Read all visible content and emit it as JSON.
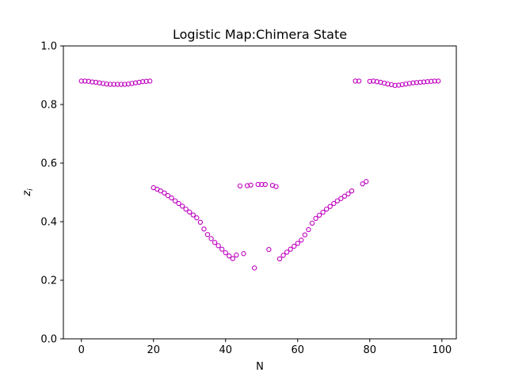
{
  "chart_data": {
    "type": "scatter",
    "title": "Logistic Map:Chimera State",
    "xlabel": "N",
    "ylabel_base": "z",
    "ylabel_sub": "i",
    "xlim": [
      -5,
      104
    ],
    "ylim": [
      0.0,
      1.0
    ],
    "xticks": [
      0,
      20,
      40,
      60,
      80,
      100
    ],
    "yticks": [
      0.0,
      0.2,
      0.4,
      0.6,
      0.8,
      1.0
    ],
    "xtick_labels": [
      "0",
      "20",
      "40",
      "60",
      "80",
      "100"
    ],
    "ytick_labels": [
      "0.0",
      "0.2",
      "0.4",
      "0.6",
      "0.8",
      "1.0"
    ],
    "marker": "open-circle",
    "marker_color": "#bf00bf",
    "grid": false,
    "series": [
      {
        "x": [
          0,
          1,
          2,
          3,
          4,
          5,
          6,
          7,
          8,
          9,
          10,
          11,
          12,
          13,
          14,
          15,
          16,
          17,
          18,
          19,
          20,
          21,
          22,
          23,
          24,
          25,
          26,
          27,
          28,
          29,
          30,
          31,
          32,
          33,
          34,
          35,
          36,
          37,
          38,
          39,
          40,
          41,
          42,
          43,
          44,
          45,
          46,
          47,
          48,
          49,
          50,
          51,
          52,
          53,
          54,
          55,
          56,
          57,
          58,
          59,
          60,
          61,
          62,
          63,
          64,
          65,
          66,
          67,
          68,
          69,
          70,
          71,
          72,
          73,
          74,
          75,
          76,
          77,
          78,
          79,
          80,
          81,
          82,
          83,
          84,
          85,
          86,
          87,
          88,
          89,
          90,
          91,
          92,
          93,
          94,
          95,
          96,
          97,
          98,
          99
        ],
        "y": [
          0.88,
          0.88,
          0.879,
          0.877,
          0.876,
          0.874,
          0.872,
          0.87,
          0.869,
          0.869,
          0.869,
          0.869,
          0.869,
          0.87,
          0.872,
          0.874,
          0.876,
          0.878,
          0.879,
          0.88,
          0.516,
          0.511,
          0.505,
          0.498,
          0.489,
          0.481,
          0.471,
          0.462,
          0.453,
          0.443,
          0.433,
          0.423,
          0.413,
          0.398,
          0.375,
          0.356,
          0.342,
          0.329,
          0.318,
          0.306,
          0.294,
          0.283,
          0.274,
          0.286,
          0.522,
          0.291,
          0.523,
          0.525,
          0.242,
          0.527,
          0.527,
          0.527,
          0.305,
          0.524,
          0.52,
          0.273,
          0.285,
          0.296,
          0.306,
          0.316,
          0.326,
          0.337,
          0.355,
          0.373,
          0.395,
          0.411,
          0.422,
          0.432,
          0.443,
          0.452,
          0.462,
          0.471,
          0.479,
          0.487,
          0.495,
          0.505,
          0.88,
          0.88,
          0.529,
          0.537,
          0.879,
          0.88,
          0.878,
          0.876,
          0.873,
          0.87,
          0.868,
          0.865,
          0.866,
          0.868,
          0.87,
          0.872,
          0.874,
          0.875,
          0.876,
          0.877,
          0.878,
          0.879,
          0.88,
          0.88
        ]
      }
    ]
  }
}
